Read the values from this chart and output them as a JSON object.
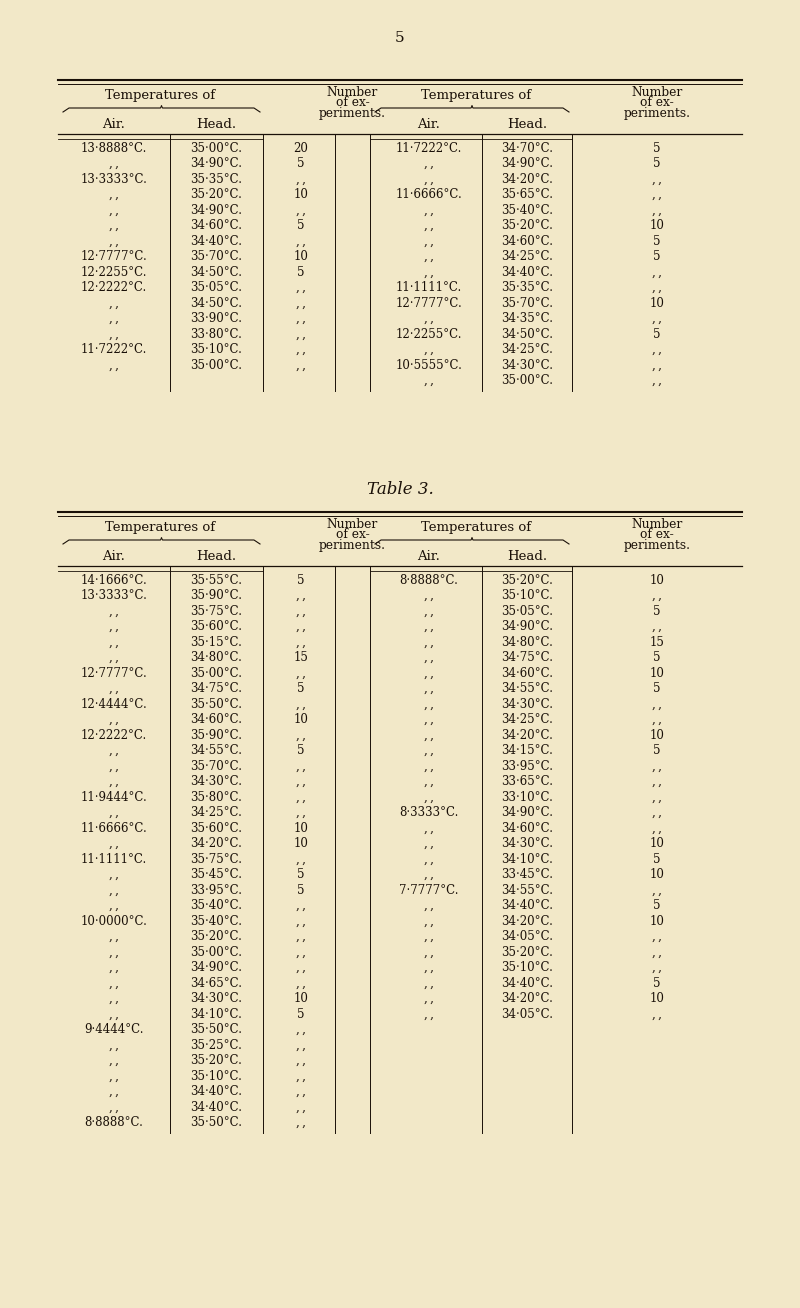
{
  "page_number": "5",
  "bg_color": "#f2e8c8",
  "text_color": "#1a1008",
  "table3_title": "Table 3.",
  "table1_rows": [
    [
      "13·8888°C.",
      "35·00°C.",
      "20"
    ],
    [
      ", ,",
      "34·90°C.",
      "5"
    ],
    [
      "13·3333°C.",
      "35·35°C.",
      ", ,"
    ],
    [
      ", ,",
      "35·20°C.",
      "10"
    ],
    [
      ", ,",
      "34·90°C.",
      ", ,"
    ],
    [
      ", ,",
      "34·60°C.",
      "5"
    ],
    [
      ", ,",
      "34·40°C.",
      ", ,"
    ],
    [
      "12·7777°C.",
      "35·70°C.",
      "10"
    ],
    [
      "12·2255°C.",
      "34·50°C.",
      "5"
    ],
    [
      "12·2222°C.",
      "35·05°C.",
      ", ,"
    ],
    [
      ", ,",
      "34·50°C.",
      ", ,"
    ],
    [
      ", ,",
      "33·90°C.",
      ", ,"
    ],
    [
      ", ,",
      "33·80°C.",
      ", ,"
    ],
    [
      "11·7222°C.",
      "35·10°C.",
      ", ,"
    ],
    [
      ", ,",
      "35·00°C.",
      ", ,"
    ]
  ],
  "table1_right_rows": [
    [
      "11·7222°C.",
      "34·70°C.",
      "5"
    ],
    [
      ", ,",
      "34·90°C.",
      "5"
    ],
    [
      ", ,",
      "34·20°C.",
      ", ,"
    ],
    [
      "11·6666°C.",
      "35·65°C.",
      ", ,"
    ],
    [
      ", ,",
      "35·40°C.",
      ", ,"
    ],
    [
      ", ,",
      "35·20°C.",
      "10"
    ],
    [
      ", ,",
      "34·60°C.",
      "5"
    ],
    [
      ", ,",
      "34·25°C.",
      "5"
    ],
    [
      ", ,",
      "34·40°C.",
      ", ,"
    ],
    [
      "11·1111°C.",
      "35·35°C.",
      ", ,"
    ],
    [
      "12·7777°C.",
      "35·70°C.",
      "10"
    ],
    [
      ", ,",
      "34·35°C.",
      ", ,"
    ],
    [
      "12·2255°C.",
      "34·50°C.",
      "5"
    ],
    [
      ", ,",
      "34·25°C.",
      ", ,"
    ],
    [
      "10·5555°C.",
      "34·30°C.",
      ", ,"
    ],
    [
      ", ,",
      "35·00°C.",
      ", ,"
    ]
  ],
  "table3_left_rows": [
    [
      "14·1666°C.",
      "35·55°C.",
      "5"
    ],
    [
      "13·3333°C.",
      "35·90°C.",
      ", ,"
    ],
    [
      ", ,",
      "35·75°C.",
      ", ,"
    ],
    [
      ", ,",
      "35·60°C.",
      ", ,"
    ],
    [
      ", ,",
      "35·15°C.",
      ", ,"
    ],
    [
      ", ,",
      "34·80°C.",
      "15"
    ],
    [
      "12·7777°C.",
      "35·00°C.",
      ", ,"
    ],
    [
      ", ,",
      "34·75°C.",
      "5"
    ],
    [
      "12·4444°C.",
      "35·50°C.",
      ", ,"
    ],
    [
      ", ,",
      "34·60°C.",
      "10"
    ],
    [
      "12·2222°C.",
      "35·90°C.",
      ", ,"
    ],
    [
      ", ,",
      "34·55°C.",
      "5"
    ],
    [
      ", ,",
      "35·70°C.",
      ", ,"
    ],
    [
      ", ,",
      "34·30°C.",
      ", ,"
    ],
    [
      "11·9444°C.",
      "35·80°C.",
      ", ,"
    ],
    [
      ", ,",
      "34·25°C.",
      ", ,"
    ],
    [
      "11·6666°C.",
      "35·60°C.",
      "10"
    ],
    [
      ", ,",
      "34·20°C.",
      "10"
    ],
    [
      "11·1111°C.",
      "35·75°C.",
      ", ,"
    ],
    [
      ", ,",
      "35·45°C.",
      "5"
    ],
    [
      ", ,",
      "33·95°C.",
      "5"
    ],
    [
      ", ,",
      "35·40°C.",
      ", ,"
    ],
    [
      "10·0000°C.",
      "35·40°C.",
      ", ,"
    ],
    [
      ", ,",
      "35·20°C.",
      ", ,"
    ],
    [
      ", ,",
      "35·00°C.",
      ", ,"
    ],
    [
      ", ,",
      "34·90°C.",
      ", ,"
    ],
    [
      ", ,",
      "34·65°C.",
      ", ,"
    ],
    [
      ", ,",
      "34·30°C.",
      "10"
    ],
    [
      ", ,",
      "34·10°C.",
      "5"
    ],
    [
      "9·4444°C.",
      "35·50°C.",
      ", ,"
    ],
    [
      ", ,",
      "35·25°C.",
      ", ,"
    ],
    [
      ", ,",
      "35·20°C.",
      ", ,"
    ],
    [
      ", ,",
      "35·10°C.",
      ", ,"
    ],
    [
      ", ,",
      "34·40°C.",
      ", ,"
    ],
    [
      ", ,",
      "34·40°C.",
      ", ,"
    ],
    [
      "8·8888°C.",
      "35·50°C.",
      ", ,"
    ]
  ],
  "table3_right_rows": [
    [
      "8·8888°C.",
      "35·20°C.",
      "10"
    ],
    [
      ", ,",
      "35·10°C.",
      ", ,"
    ],
    [
      ", ,",
      "35·05°C.",
      "5"
    ],
    [
      ", ,",
      "34·90°C.",
      ", ,"
    ],
    [
      ", ,",
      "34·80°C.",
      "15"
    ],
    [
      ", ,",
      "34·75°C.",
      "5"
    ],
    [
      ", ,",
      "34·60°C.",
      "10"
    ],
    [
      ", ,",
      "34·55°C.",
      "5"
    ],
    [
      ", ,",
      "34·30°C.",
      ", ,"
    ],
    [
      ", ,",
      "34·25°C.",
      ", ,"
    ],
    [
      ", ,",
      "34·20°C.",
      "10"
    ],
    [
      ", ,",
      "34·15°C.",
      "5"
    ],
    [
      ", ,",
      "33·95°C.",
      ", ,"
    ],
    [
      ", ,",
      "33·65°C.",
      ", ,"
    ],
    [
      ", ,",
      "33·10°C.",
      ", ,"
    ],
    [
      "8·3333°C.",
      "34·90°C.",
      ", ,"
    ],
    [
      ", ,",
      "34·60°C.",
      ", ,"
    ],
    [
      ", ,",
      "34·30°C.",
      "10"
    ],
    [
      ", ,",
      "34·10°C.",
      "5"
    ],
    [
      ", ,",
      "33·45°C.",
      "10"
    ],
    [
      "7·7777°C.",
      "34·55°C.",
      ", ,"
    ],
    [
      ", ,",
      "34·40°C.",
      "5"
    ],
    [
      ", ,",
      "34·20°C.",
      "10"
    ],
    [
      ", ,",
      "34·05°C.",
      ", ,"
    ],
    [
      ", ,",
      "35·20°C.",
      ", ,"
    ],
    [
      ", ,",
      "35·10°C.",
      ", ,"
    ],
    [
      ", ,",
      "34·40°C.",
      "5"
    ],
    [
      ", ,",
      "34·20°C.",
      "10"
    ],
    [
      ", ,",
      "34·05°C.",
      ", ,"
    ]
  ]
}
